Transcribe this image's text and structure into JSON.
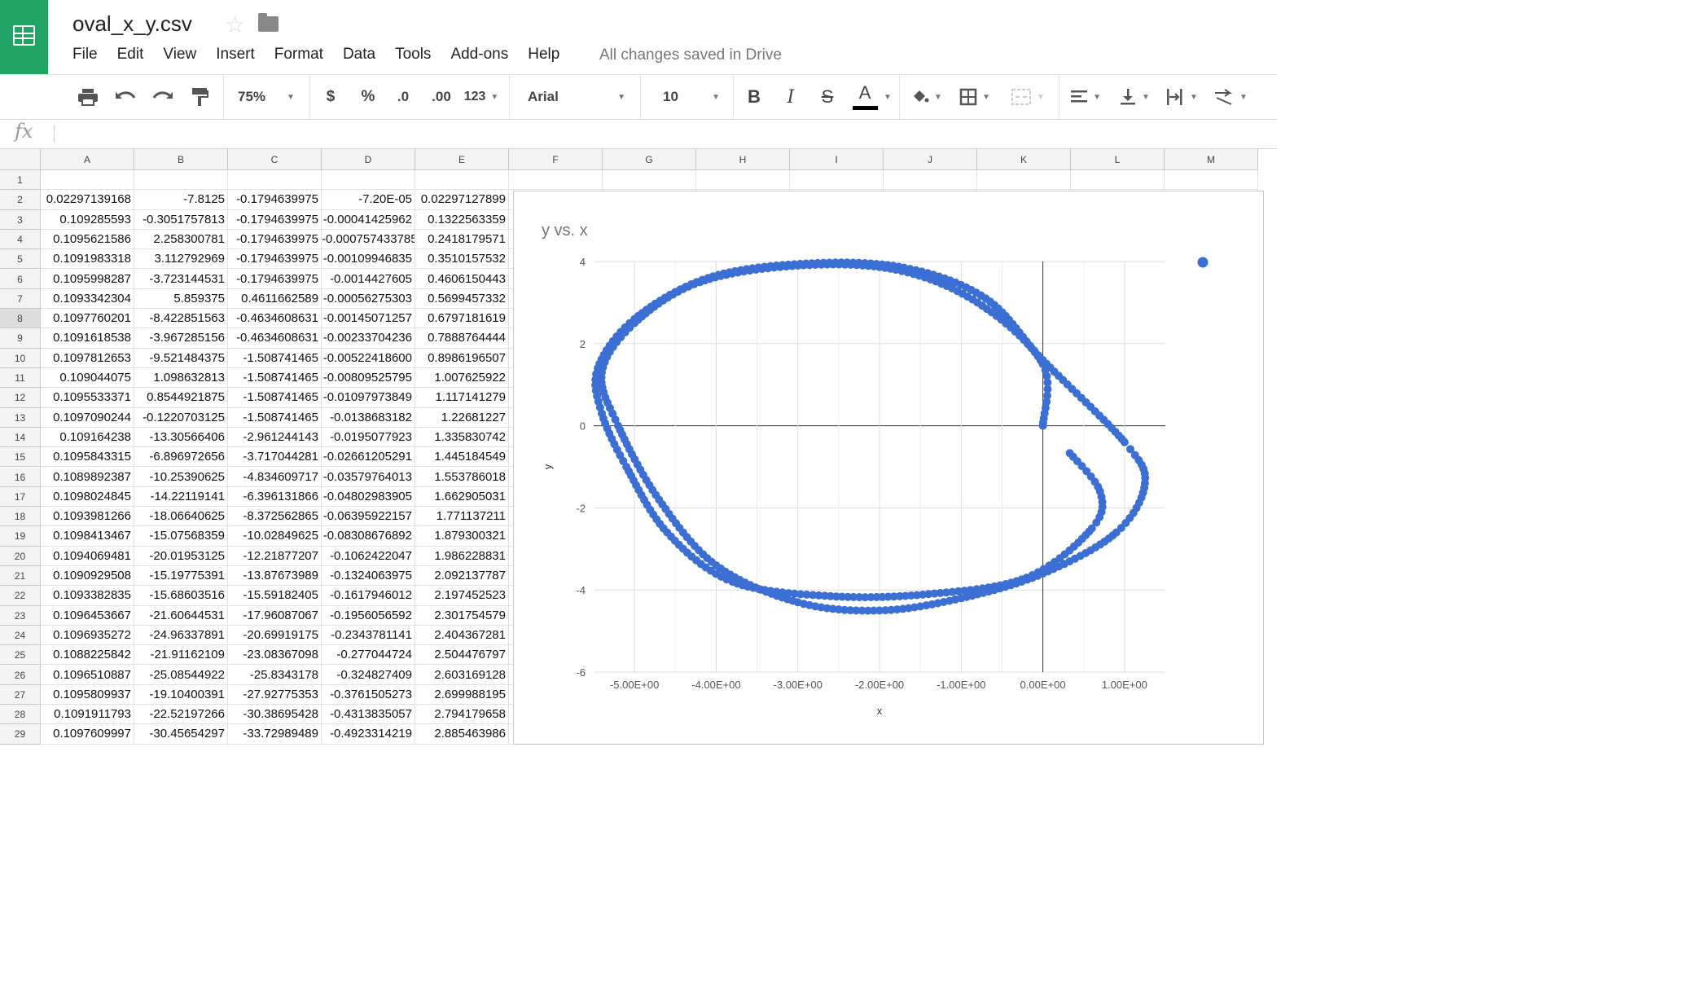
{
  "app": {
    "doc_title": "oval_x_y.csv",
    "save_status": "All changes saved in Drive"
  },
  "menu": [
    "File",
    "Edit",
    "View",
    "Insert",
    "Format",
    "Data",
    "Tools",
    "Add-ons",
    "Help"
  ],
  "toolbar": {
    "zoom": "75%",
    "currency": "$",
    "percent": "%",
    "decimal_less": ".0",
    "decimal_more": ".00",
    "more_formats": "123",
    "font": "Arial",
    "font_size": "10",
    "text_color": "#000000"
  },
  "formula_bar": {
    "fx": "fx",
    "content": ""
  },
  "columns": [
    "A",
    "B",
    "C",
    "D",
    "E",
    "F",
    "G",
    "H",
    "I",
    "J",
    "K",
    "L",
    "M"
  ],
  "rows": [
    [
      "",
      "",
      "",
      "",
      ""
    ],
    [
      "0.02297139168",
      "-7.8125",
      "-0.1794639975",
      "-7.20E-05",
      "0.02297127899"
    ],
    [
      "0.109285593",
      "-0.3051757813",
      "-0.1794639975",
      "-0.00041425962",
      "0.1322563359"
    ],
    [
      "0.1095621586",
      "2.258300781",
      "-0.1794639975",
      "-0.000757433785",
      "0.2418179571"
    ],
    [
      "0.1091983318",
      "3.112792969",
      "-0.1794639975",
      "-0.00109946835",
      "0.3510157532"
    ],
    [
      "0.1095998287",
      "-3.723144531",
      "-0.1794639975",
      "-0.0014427605",
      "0.4606150443"
    ],
    [
      "0.1093342304",
      "5.859375",
      "0.4611662589",
      "-0.00056275303",
      "0.5699457332"
    ],
    [
      "0.1097760201",
      "-8.422851563",
      "-0.4634608631",
      "-0.00145071257",
      "0.6797181619"
    ],
    [
      "0.1091618538",
      "-3.967285156",
      "-0.4634608631",
      "-0.00233704236",
      "0.7888764444"
    ],
    [
      "0.1097812653",
      "-9.521484375",
      "-1.508741465",
      "-0.00522418600",
      "0.8986196507"
    ],
    [
      "0.109044075",
      "1.098632813",
      "-1.508741465",
      "-0.00809525795",
      "1.007625922"
    ],
    [
      "0.1095533371",
      "0.8544921875",
      "-1.508741465",
      "-0.01097973849",
      "1.117141279"
    ],
    [
      "0.1097090244",
      "-0.1220703125",
      "-1.508741465",
      "-0.0138683182",
      "1.22681227"
    ],
    [
      "0.109164238",
      "-13.30566406",
      "-2.961244143",
      "-0.0195077923",
      "1.335830742"
    ],
    [
      "0.1095843315",
      "-6.896972656",
      "-3.717044281",
      "-0.02661205291",
      "1.445184549"
    ],
    [
      "0.1089892387",
      "-10.25390625",
      "-4.834609717",
      "-0.03579764013",
      "1.553786018"
    ],
    [
      "0.1098024845",
      "-14.22119141",
      "-6.396131866",
      "-0.04802983905",
      "1.662905031"
    ],
    [
      "0.1093981266",
      "-18.06640625",
      "-8.372562865",
      "-0.06395922157",
      "1.771137211"
    ],
    [
      "0.1098413467",
      "-15.07568359",
      "-10.02849625",
      "-0.08308676892",
      "1.879300321"
    ],
    [
      "0.1094069481",
      "-20.01953125",
      "-12.21877207",
      "-0.1062422047",
      "1.986228831"
    ],
    [
      "0.1090929508",
      "-15.19775391",
      "-13.87673989",
      "-0.1324063975",
      "2.092137787"
    ],
    [
      "0.1093382835",
      "-15.68603516",
      "-15.59182405",
      "-0.1617946012",
      "2.197452523"
    ],
    [
      "0.1096453667",
      "-21.60644531",
      "-17.96087067",
      "-0.1956056592",
      "2.301754579"
    ],
    [
      "0.1096935272",
      "-24.96337891",
      "-20.69919175",
      "-0.2343781141",
      "2.404367281"
    ],
    [
      "0.1088225842",
      "-21.91162109",
      "-23.08367098",
      "-0.277044724",
      "2.504476797"
    ],
    [
      "0.1096510887",
      "-25.08544922",
      "-25.8343178",
      "-0.324827409",
      "2.603169128"
    ],
    [
      "0.1095809937",
      "-19.10400391",
      "-27.92775353",
      "-0.3761505273",
      "2.699988195"
    ],
    [
      "0.1091911793",
      "-22.52197266",
      "-30.38695428",
      "-0.4313835057",
      "2.794179658"
    ],
    [
      "0.1097609997",
      "-30.45654297",
      "-33.72989489",
      "-0.4923314219",
      "2.885463986"
    ]
  ],
  "selected_row": 8,
  "chart_data": {
    "type": "scatter",
    "title": "y vs. x",
    "xlabel": "x",
    "ylabel": "y",
    "xlim": [
      -5.5,
      1.3
    ],
    "ylim": [
      -6,
      4
    ],
    "xticks": [
      "-5.00E+00",
      "-4.00E+00",
      "-3.00E+00",
      "-2.00E+00",
      "-1.00E+00",
      "0.00E+00",
      "1.00E+00"
    ],
    "yticks": [
      "4",
      "2",
      "0",
      "-2",
      "-4",
      "-6"
    ],
    "series_color": "#3b6fd4",
    "legend": "top-right",
    "outer_loop": [
      [
        0,
        0
      ],
      [
        0,
        1.5
      ],
      [
        -0.8,
        3.0
      ],
      [
        -1.8,
        3.8
      ],
      [
        -3.0,
        3.9
      ],
      [
        -4.2,
        3.5
      ],
      [
        -5.0,
        2.5
      ],
      [
        -5.4,
        1.3
      ],
      [
        -5.2,
        0
      ],
      [
        -4.7,
        -1.8
      ],
      [
        -4.0,
        -3.4
      ],
      [
        -3.0,
        -4.3
      ],
      [
        -2.0,
        -4.5
      ],
      [
        -1.0,
        -4.2
      ],
      [
        0,
        -3.6
      ],
      [
        0.9,
        -2.6
      ],
      [
        1.25,
        -1.4
      ],
      [
        1.0,
        -0.4
      ],
      [
        0,
        1.6
      ],
      [
        -0.7,
        3.1
      ],
      [
        -1.7,
        3.85
      ],
      [
        -2.9,
        3.95
      ],
      [
        -4.1,
        3.6
      ],
      [
        -5.0,
        2.6
      ],
      [
        -5.45,
        1.4
      ],
      [
        -5.4,
        0.3
      ],
      [
        -5.1,
        -1.0
      ],
      [
        -4.6,
        -2.6
      ],
      [
        -3.8,
        -3.8
      ],
      [
        -2.6,
        -4.15
      ],
      [
        -1.4,
        -4.1
      ],
      [
        -0.2,
        -3.7
      ],
      [
        0.6,
        -2.5
      ],
      [
        0.7,
        -1.6
      ],
      [
        0.3,
        -0.6
      ]
    ]
  }
}
